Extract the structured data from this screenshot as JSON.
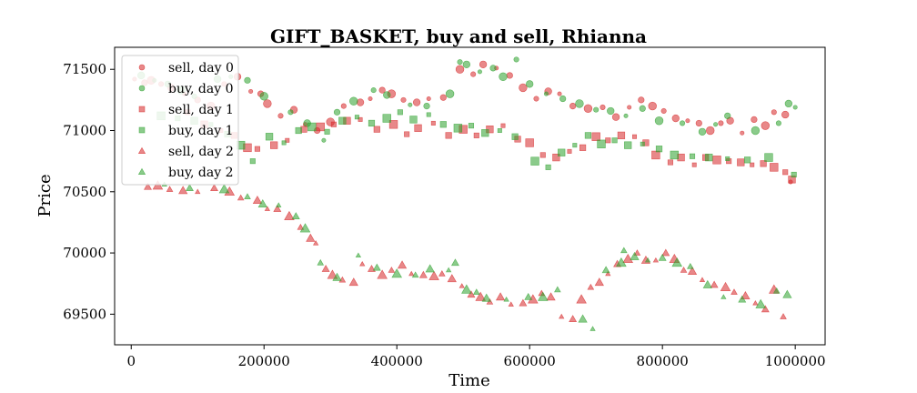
{
  "chart_data": {
    "type": "scatter",
    "title": "GIFT_BASKET, buy and sell, Rhianna",
    "xlabel": "Time",
    "ylabel": "Price",
    "xlim": [
      -25000,
      1045000
    ],
    "ylim": [
      69250,
      71680
    ],
    "x_ticks": [
      0,
      200000,
      400000,
      600000,
      800000,
      1000000
    ],
    "x_tick_labels": [
      "0",
      "200000",
      "400000",
      "600000",
      "800000",
      "1000000"
    ],
    "y_ticks": [
      69500,
      70000,
      70500,
      71000,
      71500
    ],
    "y_tick_labels": [
      "69500",
      "70000",
      "70500",
      "71000",
      "71500"
    ],
    "grid": false,
    "legend_position": "upper-left",
    "colors": {
      "sell": "#d62728",
      "buy": "#2ca02c"
    },
    "series": [
      {
        "name": "sell, day 0",
        "marker": "circle",
        "color": "#d62728",
        "points": [
          [
            5000,
            71420
          ],
          [
            20000,
            71390
          ],
          [
            30000,
            71410
          ],
          [
            45000,
            71380
          ],
          [
            60000,
            71350
          ],
          [
            80000,
            71300
          ],
          [
            100000,
            71250
          ],
          [
            120000,
            71200
          ],
          [
            140000,
            71380
          ],
          [
            160000,
            71440
          ],
          [
            180000,
            71320
          ],
          [
            195000,
            71300
          ],
          [
            205000,
            71220
          ],
          [
            225000,
            71120
          ],
          [
            245000,
            71170
          ],
          [
            262000,
            71050
          ],
          [
            280000,
            71000
          ],
          [
            300000,
            71070
          ],
          [
            320000,
            71200
          ],
          [
            345000,
            71230
          ],
          [
            360000,
            71260
          ],
          [
            378000,
            71330
          ],
          [
            392000,
            71300
          ],
          [
            410000,
            71250
          ],
          [
            430000,
            71230
          ],
          [
            448000,
            71260
          ],
          [
            470000,
            71270
          ],
          [
            495000,
            71500
          ],
          [
            515000,
            71460
          ],
          [
            530000,
            71540
          ],
          [
            550000,
            71510
          ],
          [
            570000,
            71450
          ],
          [
            590000,
            71350
          ],
          [
            610000,
            71260
          ],
          [
            628000,
            71320
          ],
          [
            645000,
            71300
          ],
          [
            665000,
            71200
          ],
          [
            688000,
            71180
          ],
          [
            710000,
            71190
          ],
          [
            730000,
            71110
          ],
          [
            750000,
            71190
          ],
          [
            768000,
            71250
          ],
          [
            785000,
            71200
          ],
          [
            802000,
            71160
          ],
          [
            820000,
            71100
          ],
          [
            838000,
            71080
          ],
          [
            855000,
            71060
          ],
          [
            872000,
            71000
          ],
          [
            888000,
            71060
          ],
          [
            902000,
            71080
          ],
          [
            920000,
            70980
          ],
          [
            938000,
            71090
          ],
          [
            955000,
            71040
          ],
          [
            968000,
            71150
          ],
          [
            985000,
            71130
          ],
          [
            993000,
            70580
          ]
        ]
      },
      {
        "name": "buy, day 0",
        "marker": "circle",
        "color": "#2ca02c",
        "points": [
          [
            15000,
            71450
          ],
          [
            35000,
            71410
          ],
          [
            55000,
            71380
          ],
          [
            75000,
            71330
          ],
          [
            95000,
            71280
          ],
          [
            130000,
            71420
          ],
          [
            150000,
            71440
          ],
          [
            175000,
            71410
          ],
          [
            200000,
            71280
          ],
          [
            240000,
            71150
          ],
          [
            265000,
            71060
          ],
          [
            290000,
            70920
          ],
          [
            310000,
            71150
          ],
          [
            335000,
            71240
          ],
          [
            365000,
            71330
          ],
          [
            385000,
            71290
          ],
          [
            420000,
            71210
          ],
          [
            445000,
            71200
          ],
          [
            480000,
            71300
          ],
          [
            495000,
            71560
          ],
          [
            505000,
            71540
          ],
          [
            525000,
            71480
          ],
          [
            545000,
            71510
          ],
          [
            560000,
            71440
          ],
          [
            580000,
            71580
          ],
          [
            600000,
            71380
          ],
          [
            625000,
            71300
          ],
          [
            650000,
            71260
          ],
          [
            675000,
            71220
          ],
          [
            700000,
            71170
          ],
          [
            722000,
            71160
          ],
          [
            745000,
            71120
          ],
          [
            770000,
            71180
          ],
          [
            795000,
            71080
          ],
          [
            830000,
            71060
          ],
          [
            860000,
            70990
          ],
          [
            880000,
            71050
          ],
          [
            898000,
            71120
          ],
          [
            940000,
            71000
          ],
          [
            975000,
            71060
          ],
          [
            990000,
            71220
          ],
          [
            1000000,
            71190
          ]
        ]
      },
      {
        "name": "sell, day 1",
        "marker": "square",
        "color": "#d62728",
        "points": [
          [
            85000,
            71150
          ],
          [
            110000,
            71050
          ],
          [
            135000,
            71000
          ],
          [
            155000,
            70960
          ],
          [
            175000,
            70860
          ],
          [
            190000,
            70850
          ],
          [
            215000,
            70880
          ],
          [
            235000,
            70920
          ],
          [
            260000,
            71010
          ],
          [
            285000,
            71030
          ],
          [
            305000,
            71050
          ],
          [
            325000,
            71080
          ],
          [
            345000,
            71090
          ],
          [
            370000,
            71010
          ],
          [
            395000,
            71050
          ],
          [
            415000,
            70970
          ],
          [
            432000,
            71020
          ],
          [
            455000,
            71060
          ],
          [
            478000,
            70960
          ],
          [
            500000,
            71010
          ],
          [
            520000,
            70960
          ],
          [
            540000,
            71010
          ],
          [
            560000,
            71040
          ],
          [
            582000,
            70930
          ],
          [
            600000,
            70900
          ],
          [
            620000,
            70800
          ],
          [
            640000,
            70780
          ],
          [
            660000,
            70830
          ],
          [
            680000,
            70860
          ],
          [
            700000,
            70950
          ],
          [
            718000,
            70920
          ],
          [
            738000,
            70960
          ],
          [
            758000,
            70950
          ],
          [
            775000,
            70900
          ],
          [
            790000,
            70800
          ],
          [
            812000,
            70740
          ],
          [
            828000,
            70780
          ],
          [
            848000,
            70720
          ],
          [
            865000,
            70780
          ],
          [
            882000,
            70760
          ],
          [
            900000,
            70750
          ],
          [
            918000,
            70740
          ],
          [
            935000,
            70720
          ],
          [
            952000,
            70730
          ],
          [
            968000,
            70700
          ],
          [
            985000,
            70660
          ],
          [
            995000,
            70600
          ]
        ]
      },
      {
        "name": "buy, day 1",
        "marker": "square",
        "color": "#2ca02c",
        "points": [
          [
            45000,
            71120
          ],
          [
            70000,
            71100
          ],
          [
            95000,
            71080
          ],
          [
            120000,
            71050
          ],
          [
            145000,
            70970
          ],
          [
            165000,
            70880
          ],
          [
            183000,
            70750
          ],
          [
            208000,
            70950
          ],
          [
            230000,
            70900
          ],
          [
            252000,
            71000
          ],
          [
            272000,
            71030
          ],
          [
            295000,
            70990
          ],
          [
            318000,
            71080
          ],
          [
            340000,
            71110
          ],
          [
            362000,
            71060
          ],
          [
            385000,
            71100
          ],
          [
            405000,
            71150
          ],
          [
            425000,
            71090
          ],
          [
            448000,
            71130
          ],
          [
            470000,
            71050
          ],
          [
            492000,
            71020
          ],
          [
            512000,
            71040
          ],
          [
            533000,
            70980
          ],
          [
            555000,
            71000
          ],
          [
            578000,
            70950
          ],
          [
            608000,
            70750
          ],
          [
            628000,
            70700
          ],
          [
            648000,
            70820
          ],
          [
            668000,
            70880
          ],
          [
            688000,
            70960
          ],
          [
            708000,
            70890
          ],
          [
            728000,
            70920
          ],
          [
            748000,
            70880
          ],
          [
            770000,
            70890
          ],
          [
            795000,
            70850
          ],
          [
            818000,
            70800
          ],
          [
            845000,
            70790
          ],
          [
            870000,
            70780
          ],
          [
            898000,
            70770
          ],
          [
            928000,
            70760
          ],
          [
            960000,
            70780
          ],
          [
            998000,
            70640
          ]
        ]
      },
      {
        "name": "sell, day 2",
        "marker": "triangle",
        "color": "#d62728",
        "points": [
          [
            25000,
            70540
          ],
          [
            40000,
            70550
          ],
          [
            58000,
            70520
          ],
          [
            78000,
            70510
          ],
          [
            100000,
            70500
          ],
          [
            125000,
            70530
          ],
          [
            148000,
            70500
          ],
          [
            165000,
            70450
          ],
          [
            190000,
            70430
          ],
          [
            205000,
            70360
          ],
          [
            220000,
            70360
          ],
          [
            238000,
            70300
          ],
          [
            255000,
            70210
          ],
          [
            270000,
            70120
          ],
          [
            278000,
            70080
          ],
          [
            293000,
            69870
          ],
          [
            303000,
            69820
          ],
          [
            318000,
            69780
          ],
          [
            335000,
            69760
          ],
          [
            348000,
            69910
          ],
          [
            362000,
            69870
          ],
          [
            378000,
            69820
          ],
          [
            392000,
            69860
          ],
          [
            408000,
            69900
          ],
          [
            422000,
            69830
          ],
          [
            440000,
            69820
          ],
          [
            456000,
            69810
          ],
          [
            468000,
            69830
          ],
          [
            483000,
            69790
          ],
          [
            498000,
            69730
          ],
          [
            512000,
            69660
          ],
          [
            526000,
            69640
          ],
          [
            540000,
            69600
          ],
          [
            556000,
            69640
          ],
          [
            572000,
            69580
          ],
          [
            590000,
            69590
          ],
          [
            605000,
            69620
          ],
          [
            618000,
            69670
          ],
          [
            632000,
            69640
          ],
          [
            648000,
            69480
          ],
          [
            665000,
            69460
          ],
          [
            678000,
            69620
          ],
          [
            692000,
            69720
          ],
          [
            705000,
            69760
          ],
          [
            718000,
            69830
          ],
          [
            732000,
            69910
          ],
          [
            748000,
            69950
          ],
          [
            762000,
            70000
          ],
          [
            775000,
            69940
          ],
          [
            790000,
            69940
          ],
          [
            805000,
            70000
          ],
          [
            818000,
            69950
          ],
          [
            832000,
            69860
          ],
          [
            845000,
            69850
          ],
          [
            860000,
            69780
          ],
          [
            878000,
            69740
          ],
          [
            895000,
            69720
          ],
          [
            908000,
            69680
          ],
          [
            925000,
            69650
          ],
          [
            940000,
            69590
          ],
          [
            955000,
            69540
          ],
          [
            968000,
            69700
          ],
          [
            982000,
            69480
          ]
        ]
      },
      {
        "name": "buy, day 2",
        "marker": "triangle",
        "color": "#2ca02c",
        "points": [
          [
            50000,
            70560
          ],
          [
            88000,
            70530
          ],
          [
            140000,
            70520
          ],
          [
            175000,
            70460
          ],
          [
            198000,
            70400
          ],
          [
            222000,
            70390
          ],
          [
            248000,
            70300
          ],
          [
            262000,
            70200
          ],
          [
            285000,
            69920
          ],
          [
            310000,
            69800
          ],
          [
            342000,
            69980
          ],
          [
            370000,
            69880
          ],
          [
            400000,
            69830
          ],
          [
            428000,
            69820
          ],
          [
            450000,
            69870
          ],
          [
            478000,
            69860
          ],
          [
            488000,
            69920
          ],
          [
            505000,
            69700
          ],
          [
            520000,
            69680
          ],
          [
            535000,
            69630
          ],
          [
            565000,
            69620
          ],
          [
            598000,
            69640
          ],
          [
            620000,
            69640
          ],
          [
            642000,
            69700
          ],
          [
            680000,
            69460
          ],
          [
            695000,
            69380
          ],
          [
            715000,
            69860
          ],
          [
            738000,
            69920
          ],
          [
            742000,
            70020
          ],
          [
            758000,
            69970
          ],
          [
            778000,
            69940
          ],
          [
            800000,
            69960
          ],
          [
            822000,
            69920
          ],
          [
            842000,
            69890
          ],
          [
            868000,
            69740
          ],
          [
            892000,
            69640
          ],
          [
            920000,
            69620
          ],
          [
            948000,
            69580
          ],
          [
            972000,
            69690
          ],
          [
            988000,
            69660
          ]
        ]
      }
    ]
  }
}
